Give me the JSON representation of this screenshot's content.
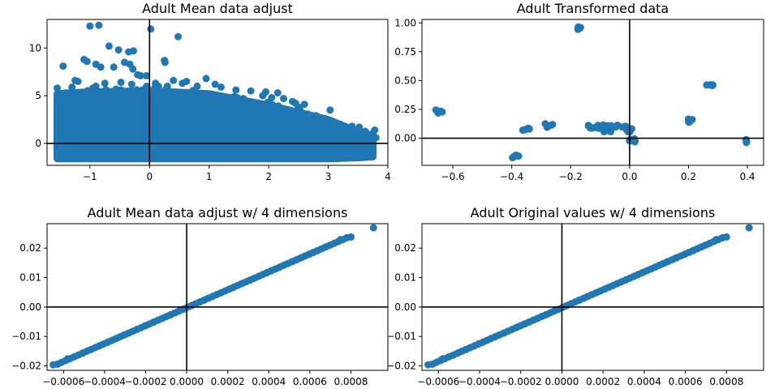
{
  "figure": {
    "point_color": "#1f77b4",
    "axis_line_color": "#000000"
  },
  "chart_data": [
    {
      "type": "scatter",
      "title": "Adult Mean data adjust",
      "xlabel": "",
      "ylabel": "",
      "xlim": [
        -1.72,
        4.0
      ],
      "ylim": [
        -2.3,
        13.0
      ],
      "xticks": [
        -1,
        0,
        1,
        2,
        3,
        4
      ],
      "xtick_labels": [
        "−1",
        "0",
        "1",
        "2",
        "3",
        "4"
      ],
      "yticks": [
        0,
        5,
        10
      ],
      "ytick_labels": [
        "0",
        "5",
        "10"
      ],
      "reference_lines": {
        "x": 0,
        "y": 0
      },
      "grid": false,
      "dense_band": {
        "x": [
          -1.55,
          -1.0,
          0.0,
          1.0,
          2.0,
          3.0,
          3.5,
          3.75
        ],
        "ymin": [
          -1.6,
          -1.6,
          -1.6,
          -1.6,
          -1.6,
          -1.6,
          -1.5,
          -1.4
        ],
        "ymax": [
          5.2,
          5.4,
          5.5,
          5.2,
          4.0,
          2.5,
          1.2,
          0.8
        ]
      },
      "points": [
        [
          -1.0,
          12.3
        ],
        [
          -0.85,
          12.4
        ],
        [
          0.02,
          12.0
        ],
        [
          0.48,
          11.2
        ],
        [
          -0.68,
          10.2
        ],
        [
          -0.52,
          9.8
        ],
        [
          -0.35,
          9.6
        ],
        [
          -0.27,
          9.7
        ],
        [
          -1.1,
          8.8
        ],
        [
          -1.05,
          8.6
        ],
        [
          -0.9,
          8.3
        ],
        [
          -0.82,
          8.0
        ],
        [
          -0.6,
          8.0
        ],
        [
          -0.42,
          8.5
        ],
        [
          -0.33,
          8.3
        ],
        [
          -0.28,
          7.8
        ],
        [
          0.25,
          8.7
        ],
        [
          0.26,
          8.5
        ],
        [
          -1.45,
          8.1
        ],
        [
          -0.2,
          7.2
        ],
        [
          -0.15,
          7.1
        ],
        [
          -0.05,
          7.1
        ],
        [
          0.95,
          6.8
        ],
        [
          0.55,
          6.3
        ],
        [
          -1.2,
          6.5
        ],
        [
          -1.25,
          6.6
        ],
        [
          -0.75,
          6.3
        ],
        [
          -0.48,
          6.4
        ],
        [
          -0.3,
          6.2
        ],
        [
          0.3,
          6.0
        ],
        [
          0.15,
          6.0
        ],
        [
          -0.05,
          6.0
        ],
        [
          -0.9,
          6.0
        ],
        [
          1.2,
          5.9
        ],
        [
          1.45,
          5.6
        ],
        [
          1.7,
          5.5
        ],
        [
          1.95,
          5.4
        ],
        [
          2.15,
          5.3
        ],
        [
          1.1,
          6.2
        ],
        [
          0.62,
          6.5
        ],
        [
          0.4,
          6.6
        ],
        [
          -1.55,
          5.8
        ],
        [
          -1.3,
          5.9
        ],
        [
          2.4,
          4.4
        ],
        [
          2.6,
          4.1
        ],
        [
          2.45,
          4.2
        ],
        [
          2.25,
          4.7
        ],
        [
          2.5,
          3.8
        ],
        [
          3.03,
          3.5
        ],
        [
          2.7,
          2.9
        ],
        [
          2.95,
          2.6
        ],
        [
          3.2,
          2.0
        ],
        [
          3.4,
          1.8
        ],
        [
          3.05,
          1.9
        ],
        [
          3.52,
          1.7
        ],
        [
          3.78,
          1.4
        ],
        [
          3.75,
          1.1
        ],
        [
          3.7,
          0.9
        ],
        [
          3.6,
          0.7
        ],
        [
          3.8,
          0.6
        ],
        [
          -1.5,
          5.2
        ],
        [
          -1.4,
          5.3
        ],
        [
          0.8,
          6.0
        ],
        [
          1.9,
          5.0
        ],
        [
          2.05,
          4.8
        ],
        [
          -0.95,
          5.8
        ],
        [
          0.1,
          6.3
        ],
        [
          2.8,
          2.7
        ],
        [
          3.3,
          1.6
        ],
        [
          3.1,
          2.2
        ]
      ]
    },
    {
      "type": "scatter",
      "title": "Adult Transformed data",
      "xlabel": "",
      "ylabel": "",
      "xlim": [
        -0.705,
        0.455
      ],
      "ylim": [
        -0.235,
        1.03
      ],
      "xticks": [
        -0.6,
        -0.4,
        -0.2,
        0.0,
        0.2,
        0.4
      ],
      "xtick_labels": [
        "−0.6",
        "−0.4",
        "−0.2",
        "0.0",
        "0.2",
        "0.4"
      ],
      "yticks": [
        0.0,
        0.25,
        0.5,
        0.75,
        1.0
      ],
      "ytick_labels": [
        "0.00",
        "0.25",
        "0.50",
        "0.75",
        "1.00"
      ],
      "reference_lines": {
        "x": 0,
        "y": 0
      },
      "grid": false,
      "clusters": [
        {
          "x": -0.645,
          "y": 0.23,
          "n": 6
        },
        {
          "x": -0.39,
          "y": -0.16,
          "n": 6
        },
        {
          "x": -0.35,
          "y": 0.08,
          "n": 5
        },
        {
          "x": -0.275,
          "y": 0.11,
          "n": 4
        },
        {
          "x": -0.18,
          "y": 0.955,
          "n": 6
        },
        {
          "x": -0.1,
          "y": 0.1,
          "n": 18
        },
        {
          "x": -0.04,
          "y": 0.1,
          "n": 12
        },
        {
          "x": -0.075,
          "y": 0.07,
          "n": 6
        },
        {
          "x": 0.0,
          "y": 0.07,
          "n": 10
        },
        {
          "x": 0.005,
          "y": -0.02,
          "n": 8
        },
        {
          "x": 0.21,
          "y": 0.155,
          "n": 6
        },
        {
          "x": 0.27,
          "y": 0.465,
          "n": 6
        },
        {
          "x": 0.39,
          "y": -0.025,
          "n": 4
        }
      ]
    },
    {
      "type": "scatter",
      "title": "Adult Mean data adjust w/ 4 dimensions",
      "xlabel": "",
      "ylabel": "",
      "xlim": [
        -0.00068,
        0.00098
      ],
      "ylim": [
        -0.0215,
        0.0283
      ],
      "xticks": [
        -0.0006,
        -0.0004,
        -0.0002,
        0.0,
        0.0002,
        0.0004,
        0.0006,
        0.0008
      ],
      "xtick_labels": [
        "−0.0006",
        "−0.0004",
        "−0.0002",
        "0.0000",
        "0.0002",
        "0.0004",
        "0.0006",
        "0.0008"
      ],
      "yticks": [
        -0.02,
        -0.01,
        0.0,
        0.01,
        0.02
      ],
      "ytick_labels": [
        "−0.02",
        "−0.01",
        "0.00",
        "0.01",
        "0.02"
      ],
      "reference_lines": {
        "x": 0,
        "y": 0
      },
      "grid": false,
      "line_band": {
        "x_start": -0.00063,
        "y_start": -0.0194,
        "x_end": 0.00078,
        "y_end": 0.0235,
        "n": 70
      },
      "extra_points": [
        [
          -0.00065,
          -0.0196
        ],
        [
          0.0008,
          0.0238
        ],
        [
          0.00091,
          0.0269
        ],
        [
          0.00075,
          0.0229
        ],
        [
          -0.00058,
          -0.0176
        ]
      ]
    },
    {
      "type": "scatter",
      "title": "Adult Original values w/ 4 dimensions",
      "xlabel": "",
      "ylabel": "",
      "xlim": [
        -0.00068,
        0.00098
      ],
      "ylim": [
        -0.0215,
        0.0283
      ],
      "xticks": [
        -0.0006,
        -0.0004,
        -0.0002,
        0.0,
        0.0002,
        0.0004,
        0.0006,
        0.0008
      ],
      "xtick_labels": [
        "−0.0006",
        "−0.0004",
        "−0.0002",
        "0.0000",
        "0.0002",
        "0.0004",
        "0.0006",
        "0.0008"
      ],
      "yticks": [
        -0.02,
        -0.01,
        0.0,
        0.01,
        0.02
      ],
      "ytick_labels": [
        "−0.02",
        "−0.01",
        "0.00",
        "0.01",
        "0.02"
      ],
      "reference_lines": {
        "x": 0,
        "y": 0
      },
      "grid": false,
      "line_band": {
        "x_start": -0.00063,
        "y_start": -0.0194,
        "x_end": 0.00078,
        "y_end": 0.0235,
        "n": 70
      },
      "extra_points": [
        [
          -0.00065,
          -0.0196
        ],
        [
          0.0008,
          0.0238
        ],
        [
          0.00091,
          0.0269
        ],
        [
          0.00075,
          0.0229
        ],
        [
          -0.00058,
          -0.0176
        ]
      ]
    }
  ]
}
